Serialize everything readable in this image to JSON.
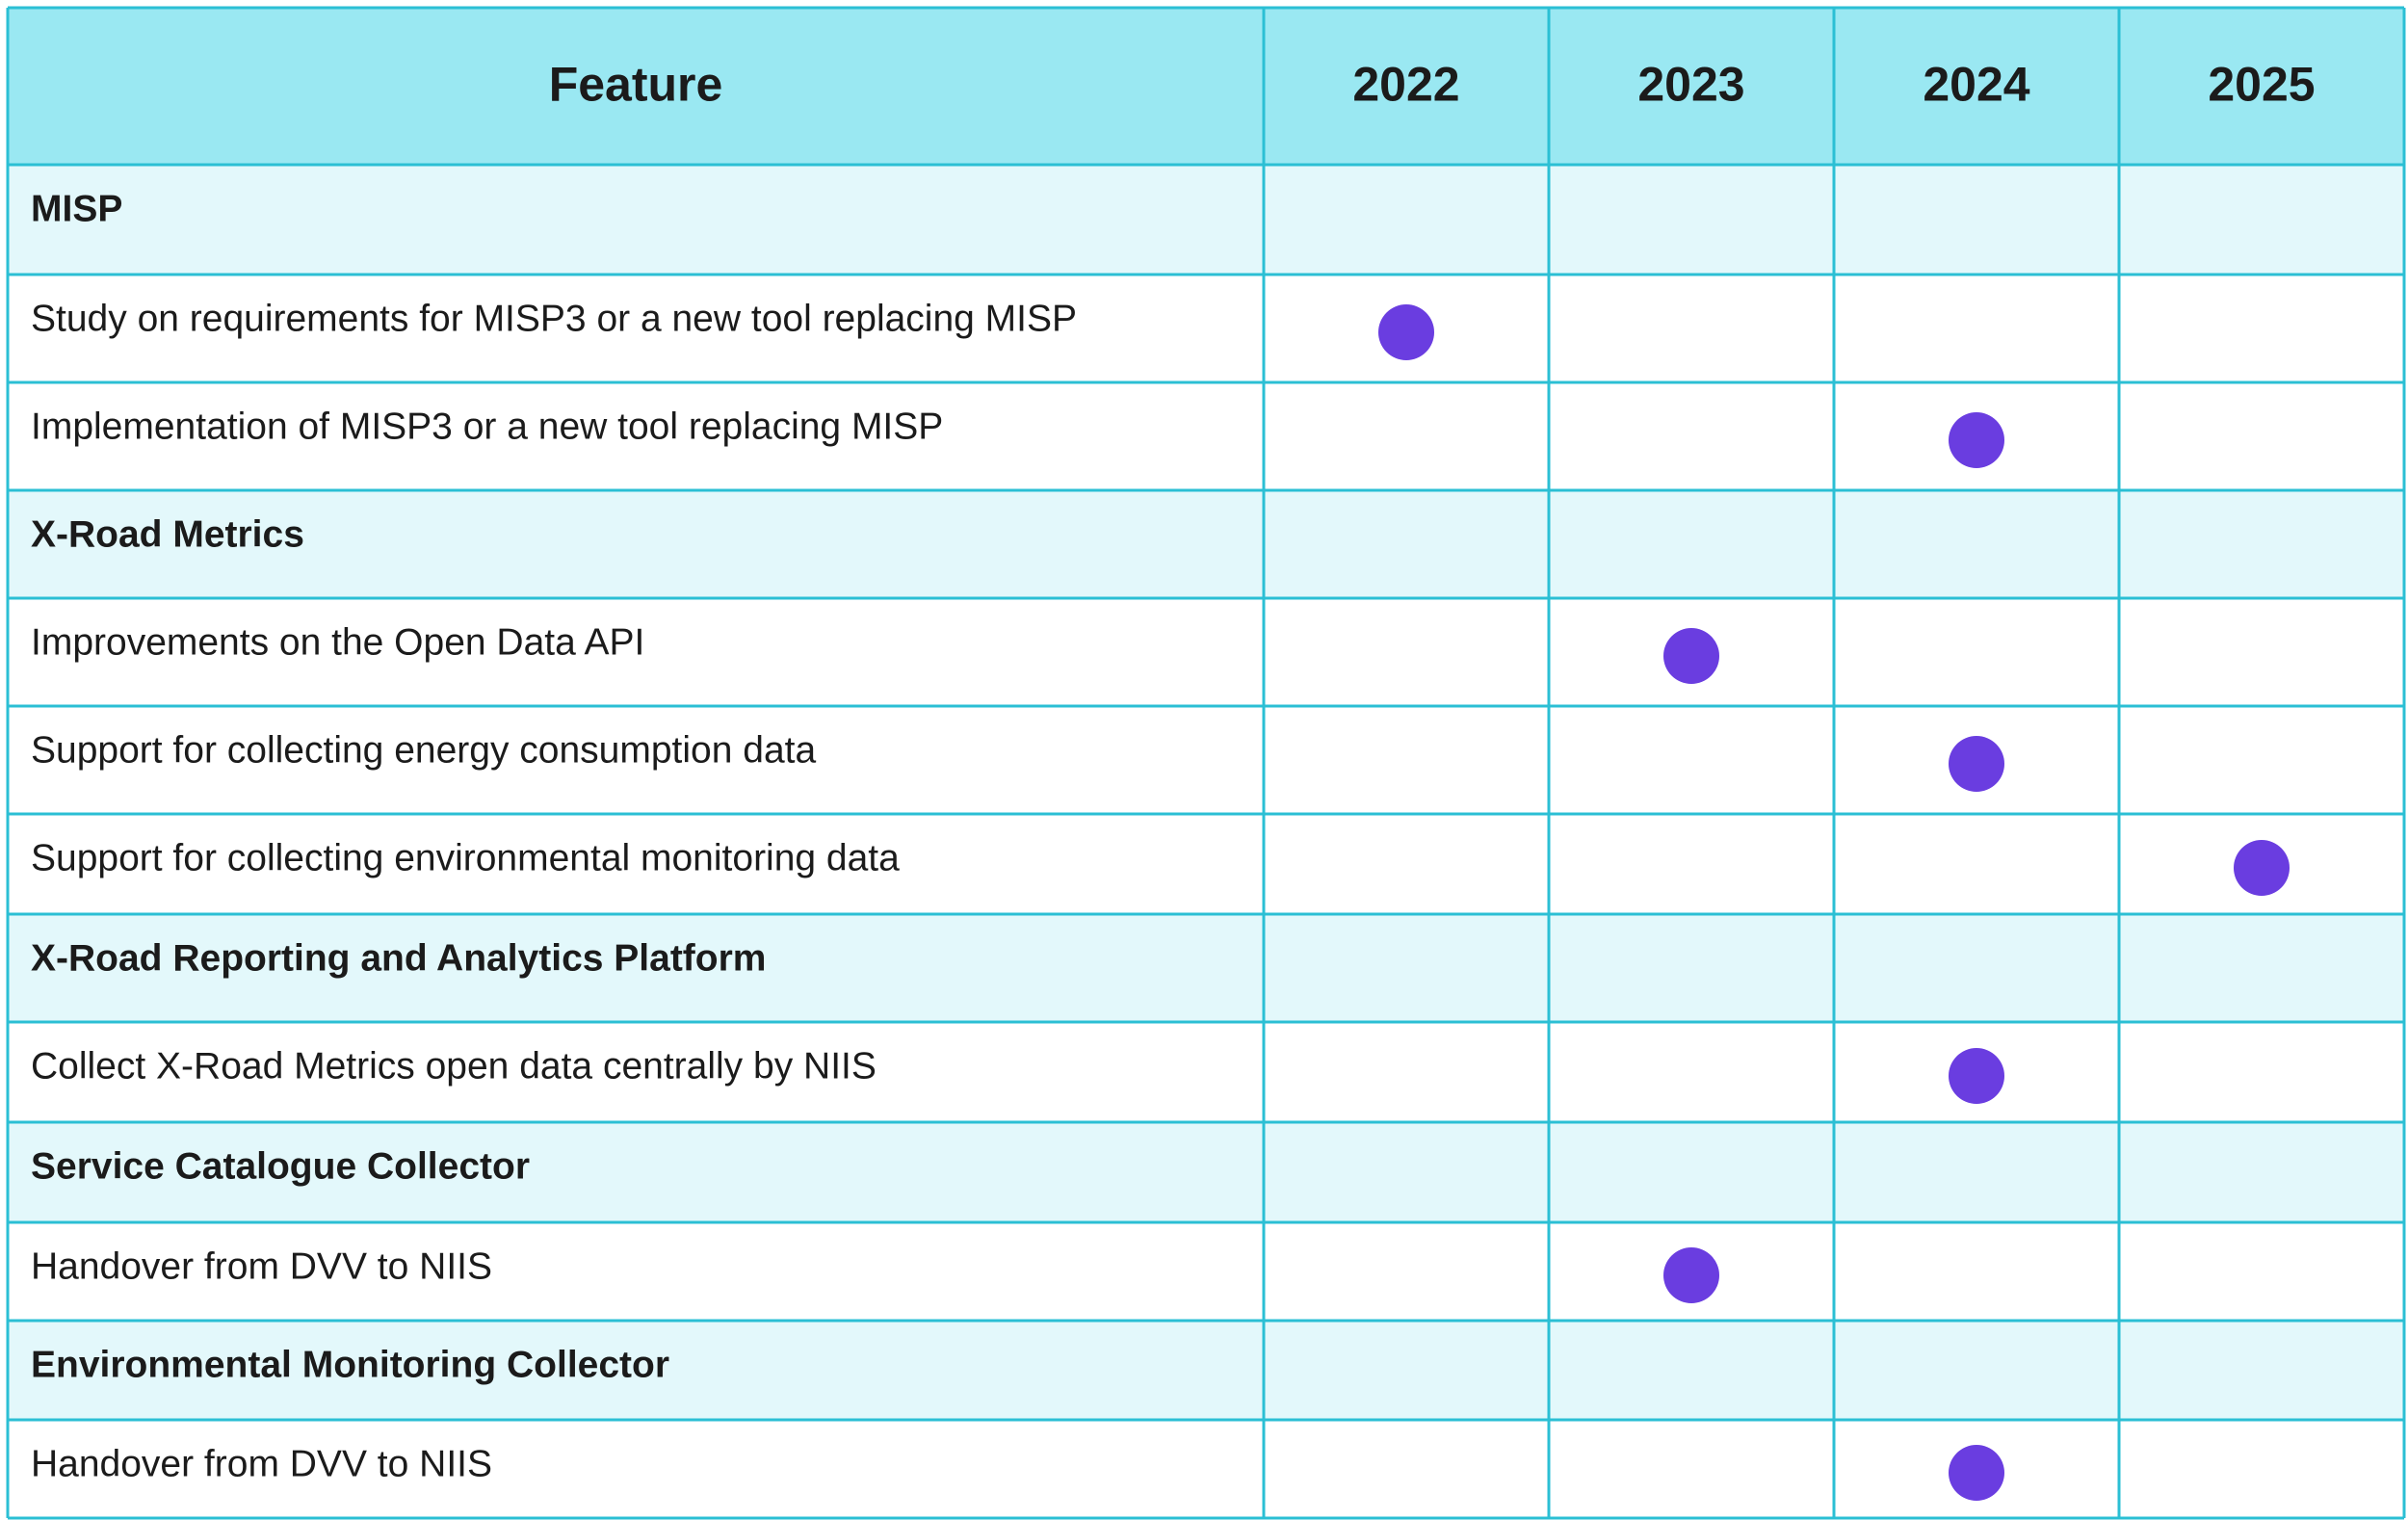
{
  "header": {
    "columns": [
      "Feature",
      "2022",
      "2023",
      "2024",
      "2025"
    ]
  },
  "rows": [
    {
      "label": "MISP",
      "kind": "group"
    },
    {
      "label": "Study on requirements for MISP3 or a new tool replacing MISP",
      "kind": "item",
      "year": "2022"
    },
    {
      "label": "Implementation of MISP3 or a new tool replacing MISP",
      "kind": "item",
      "year": "2024"
    },
    {
      "label": "X-Road Metrics",
      "kind": "group"
    },
    {
      "label": "Improvements on the Open Data API",
      "kind": "item",
      "year": "2023"
    },
    {
      "label": "Support for collecting energy consumption data",
      "kind": "item",
      "year": "2024"
    },
    {
      "label": "Support for collecting environmental monitoring data",
      "kind": "item",
      "year": "2025"
    },
    {
      "label": "X-Road Reporting and Analytics Platform",
      "kind": "group"
    },
    {
      "label": "Collect X-Road Metrics open data centrally by NIIS",
      "kind": "item",
      "year": "2024"
    },
    {
      "label": "Service Catalogue Collector",
      "kind": "group"
    },
    {
      "label": "Handover from DVV to NIIS",
      "kind": "item",
      "year": "2023"
    },
    {
      "label": "Environmental Monitoring Collector",
      "kind": "group"
    },
    {
      "label": "Handover from DVV to NIIS",
      "kind": "item",
      "year": "2024"
    }
  ]
}
